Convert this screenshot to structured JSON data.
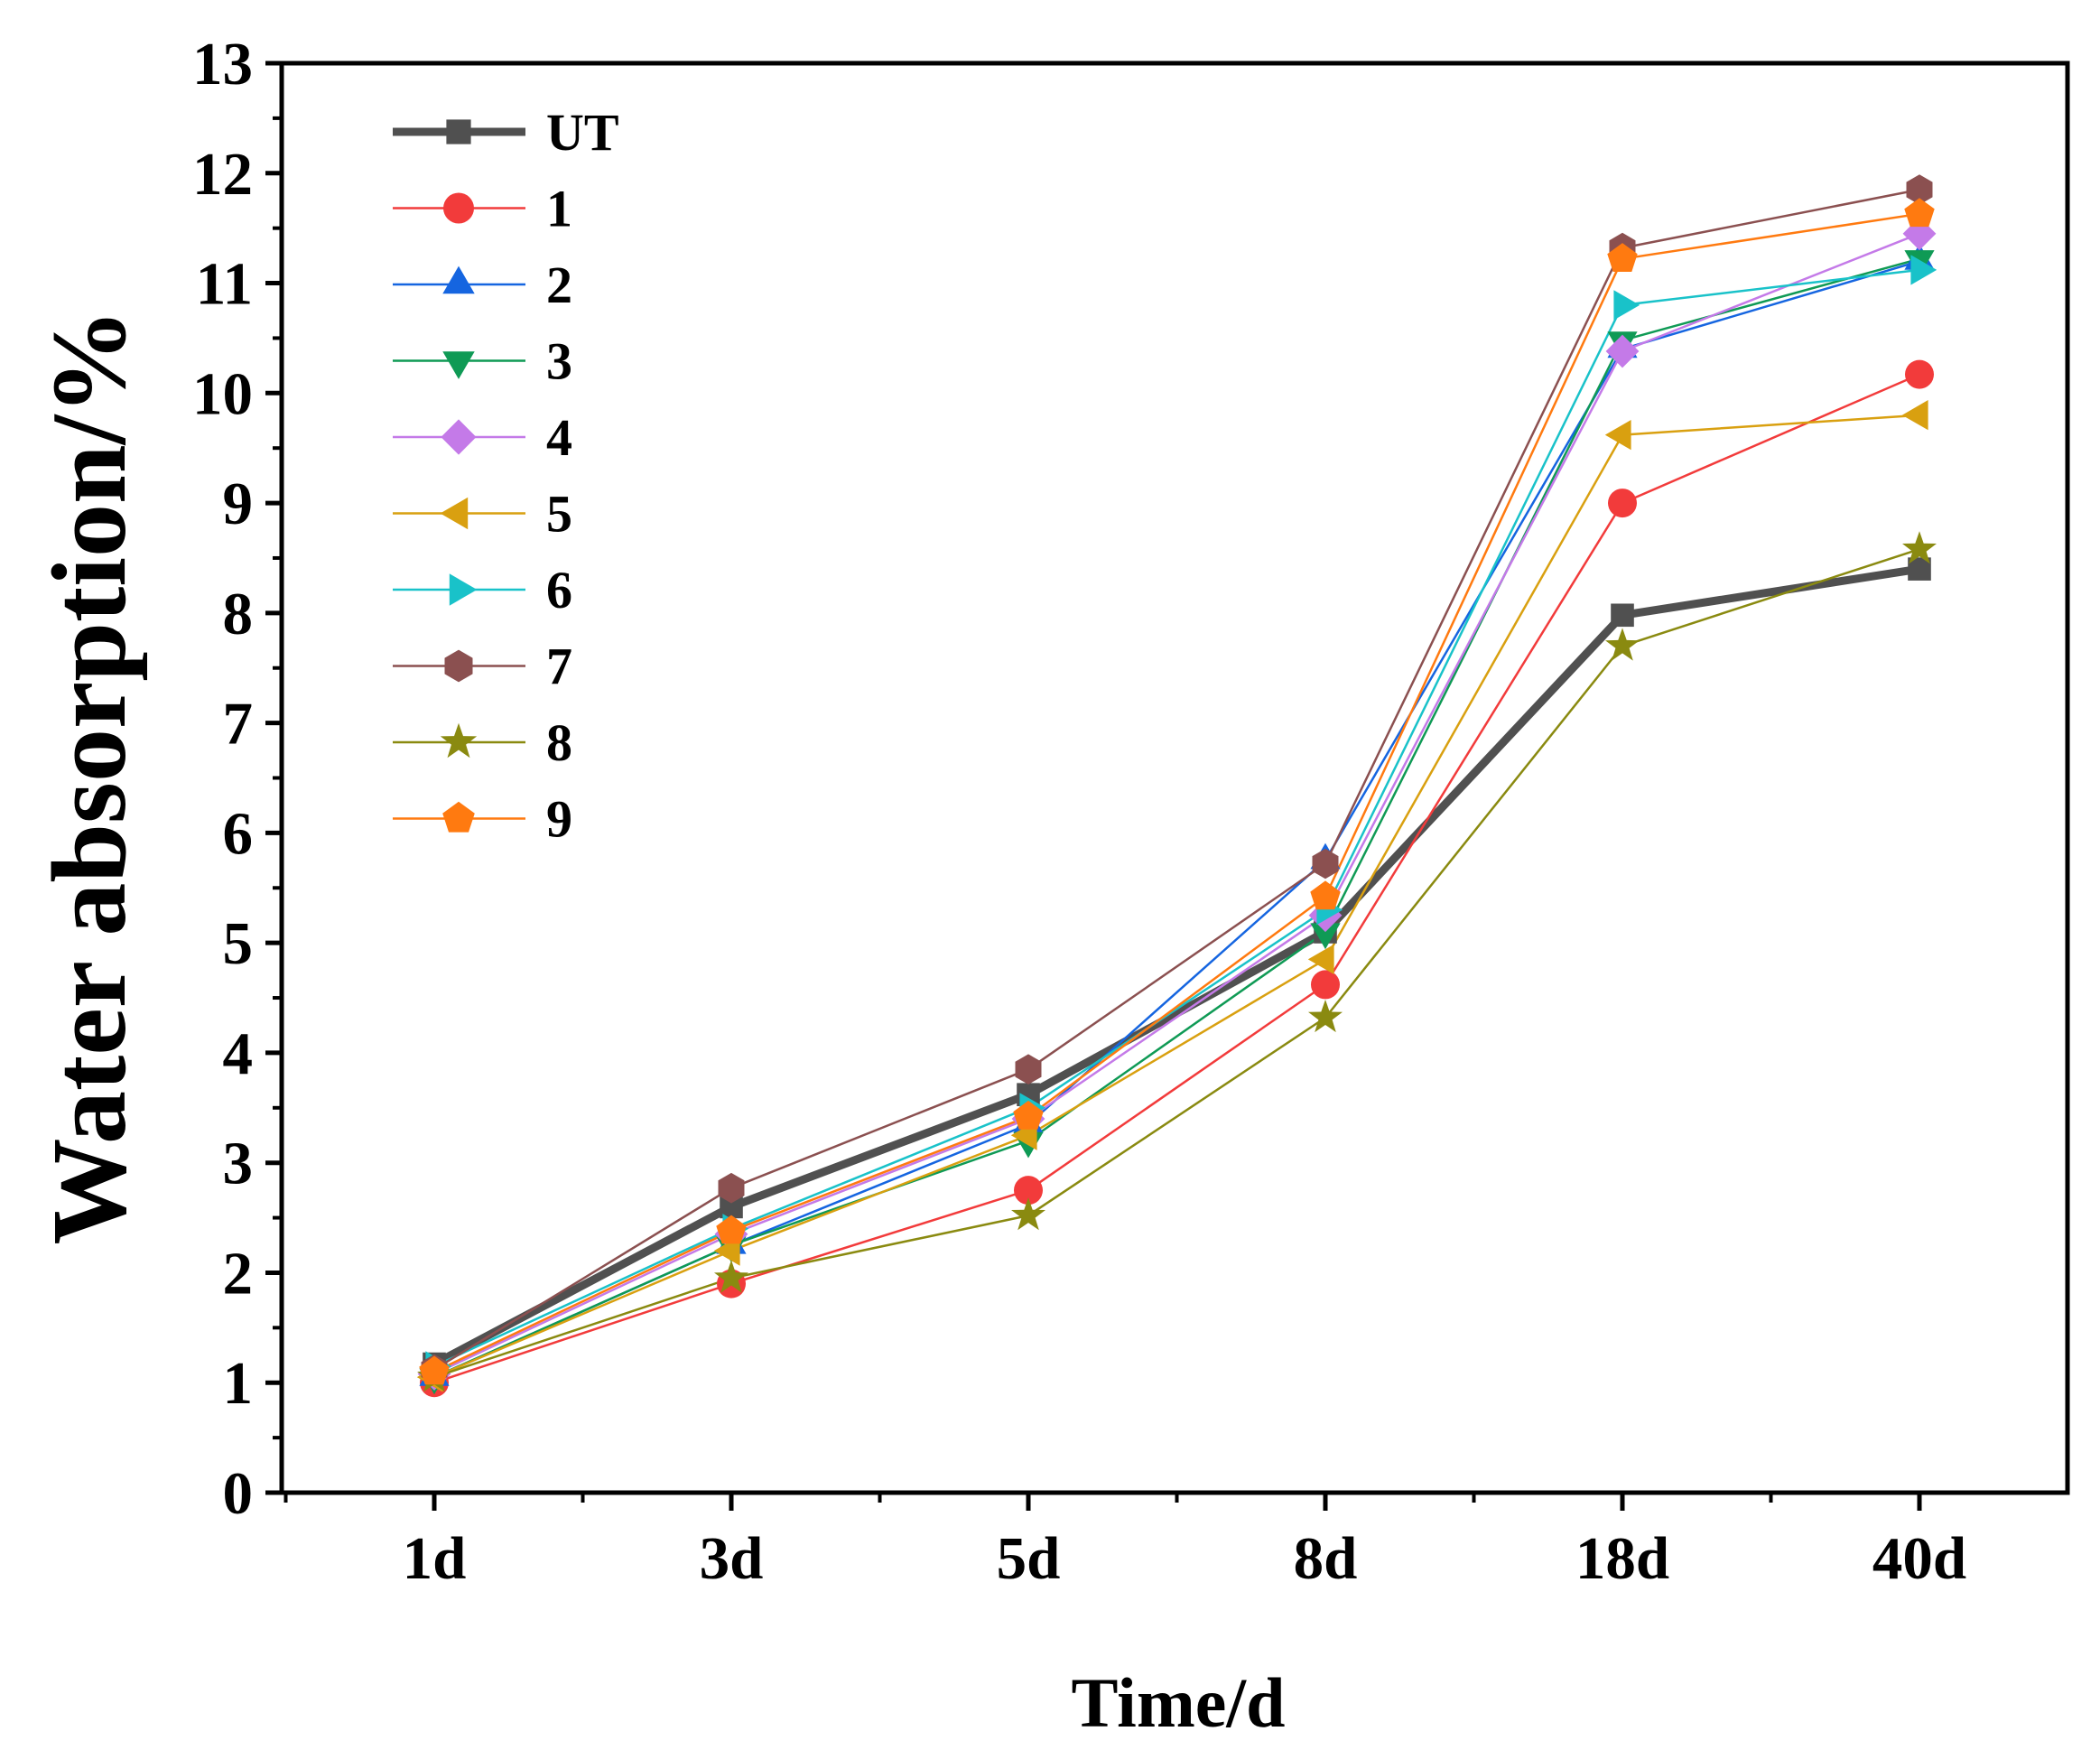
{
  "chart_data": {
    "type": "line",
    "title": "",
    "xlabel": "Time/d",
    "ylabel": "Water absorption/%",
    "categories": [
      "1d",
      "3d",
      "5d",
      "8d",
      "18d",
      "40d"
    ],
    "ylim": [
      0,
      13
    ],
    "yticks": [
      0,
      1,
      2,
      3,
      4,
      5,
      6,
      7,
      8,
      9,
      10,
      11,
      12,
      13
    ],
    "grid": false,
    "legend_position": "top-left",
    "series": [
      {
        "name": "UT",
        "color": "#505050",
        "marker": "square",
        "bold": true,
        "values": [
          1.17,
          2.6,
          3.62,
          5.1,
          7.98,
          8.4
        ]
      },
      {
        "name": "1",
        "color": "#f23b3b",
        "marker": "circle",
        "values": [
          1.0,
          1.9,
          2.75,
          4.62,
          9.0,
          10.17
        ]
      },
      {
        "name": "2",
        "color": "#1565e0",
        "marker": "triangle-up",
        "values": [
          1.05,
          2.25,
          3.35,
          5.75,
          10.4,
          11.2
        ]
      },
      {
        "name": "3",
        "color": "#0f9a55",
        "marker": "triangle-down",
        "values": [
          1.05,
          2.25,
          3.2,
          5.1,
          10.48,
          11.22
        ]
      },
      {
        "name": "4",
        "color": "#c47ae8",
        "marker": "diamond",
        "values": [
          1.08,
          2.35,
          3.4,
          5.25,
          10.38,
          11.45
        ]
      },
      {
        "name": "5",
        "color": "#d9a010",
        "marker": "triangle-left",
        "values": [
          1.05,
          2.2,
          3.25,
          4.85,
          9.62,
          9.8
        ]
      },
      {
        "name": "6",
        "color": "#19c2c9",
        "marker": "triangle-right",
        "values": [
          1.15,
          2.4,
          3.5,
          5.3,
          10.8,
          11.12
        ]
      },
      {
        "name": "7",
        "color": "#8b5050",
        "marker": "hexagon",
        "values": [
          1.12,
          2.77,
          3.85,
          5.72,
          11.32,
          11.85
        ]
      },
      {
        "name": "8",
        "color": "#8a8a10",
        "marker": "star",
        "values": [
          1.05,
          1.95,
          2.52,
          4.32,
          7.7,
          8.58
        ]
      },
      {
        "name": "9",
        "color": "#ff7a10",
        "marker": "pentagon",
        "values": [
          1.1,
          2.38,
          3.42,
          5.42,
          11.22,
          11.63
        ]
      }
    ]
  }
}
